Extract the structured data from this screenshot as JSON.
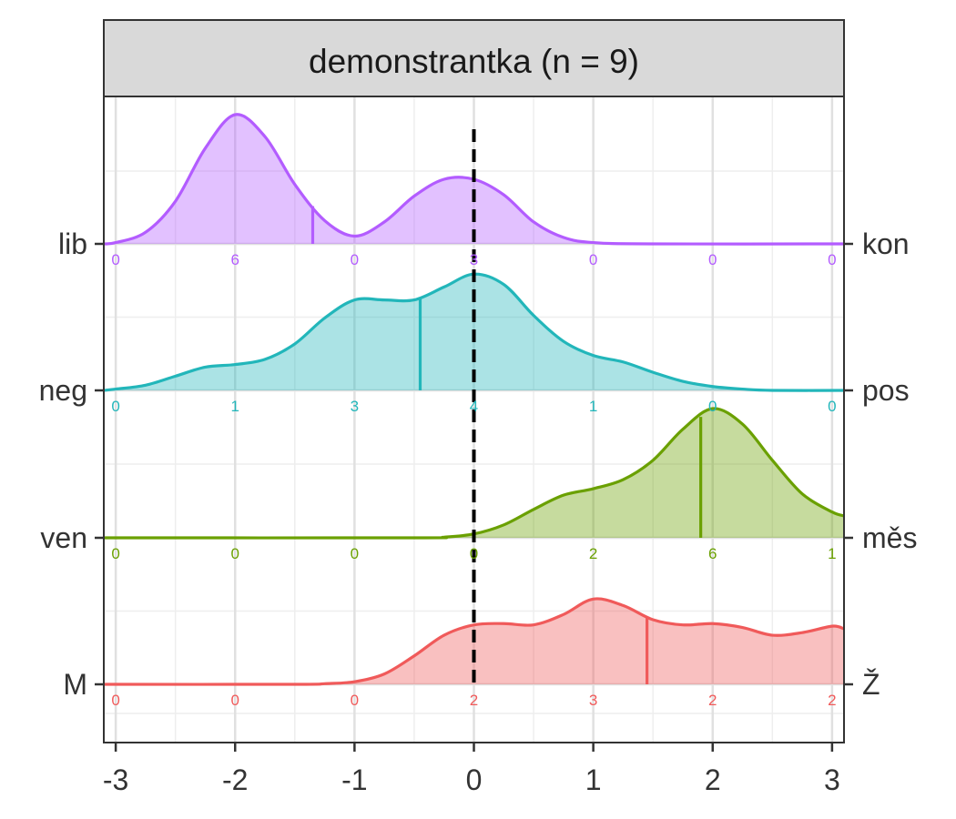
{
  "chart_data": {
    "type": "ridgeline",
    "title": "demonstrantka (n = 9)",
    "xlim": [
      -3.1,
      3.1
    ],
    "x_ticks": [
      -3,
      -2,
      -1,
      0,
      1,
      2,
      3
    ],
    "x_tick_labels": [
      "-3",
      "-2",
      "-1",
      "0",
      "1",
      "2",
      "3"
    ],
    "reference_line_x": 0,
    "grid": true,
    "series": [
      {
        "left_label": "lib",
        "right_label": "kon",
        "color": "#B35CFF",
        "marker": -1.35,
        "count_x": [
          -3,
          -2,
          -1,
          0,
          1,
          2,
          3
        ],
        "counts": [
          "0",
          "6",
          "0",
          "3",
          "0",
          "0",
          "0"
        ],
        "density": [
          [
            -3.1,
            0.0
          ],
          [
            -3.0,
            0.01
          ],
          [
            -2.75,
            0.09
          ],
          [
            -2.5,
            0.33
          ],
          [
            -2.25,
            0.74
          ],
          [
            -2.0,
            1.0
          ],
          [
            -1.75,
            0.83
          ],
          [
            -1.5,
            0.46
          ],
          [
            -1.25,
            0.18
          ],
          [
            -1.0,
            0.06
          ],
          [
            -0.75,
            0.17
          ],
          [
            -0.5,
            0.37
          ],
          [
            -0.25,
            0.5
          ],
          [
            0.0,
            0.5
          ],
          [
            0.25,
            0.38
          ],
          [
            0.5,
            0.17
          ],
          [
            0.75,
            0.05
          ],
          [
            1.0,
            0.01
          ],
          [
            1.5,
            0.0
          ],
          [
            3.1,
            0.0
          ]
        ]
      },
      {
        "left_label": "neg",
        "right_label": "pos",
        "color": "#22B6BA",
        "marker": -0.45,
        "count_x": [
          -3,
          -2,
          -1,
          0,
          1,
          2,
          3
        ],
        "counts": [
          "0",
          "1",
          "3",
          "4",
          "1",
          "0",
          "0"
        ],
        "density": [
          [
            -3.1,
            0.0
          ],
          [
            -3.0,
            0.01
          ],
          [
            -2.75,
            0.04
          ],
          [
            -2.5,
            0.11
          ],
          [
            -2.25,
            0.18
          ],
          [
            -2.0,
            0.2
          ],
          [
            -1.75,
            0.24
          ],
          [
            -1.5,
            0.36
          ],
          [
            -1.25,
            0.56
          ],
          [
            -1.0,
            0.7
          ],
          [
            -0.75,
            0.7
          ],
          [
            -0.5,
            0.7
          ],
          [
            -0.25,
            0.8
          ],
          [
            0.0,
            0.9
          ],
          [
            0.25,
            0.82
          ],
          [
            0.5,
            0.58
          ],
          [
            0.75,
            0.38
          ],
          [
            1.0,
            0.27
          ],
          [
            1.25,
            0.22
          ],
          [
            1.5,
            0.14
          ],
          [
            1.75,
            0.07
          ],
          [
            2.0,
            0.03
          ],
          [
            2.25,
            0.01
          ],
          [
            2.5,
            0.0
          ],
          [
            3.1,
            0.0
          ]
        ]
      },
      {
        "left_label": "ven",
        "right_label": "měs",
        "color": "#6AA000",
        "marker": 1.9,
        "count_x": [
          -3,
          -2,
          -1,
          0,
          1,
          2,
          3
        ],
        "counts": [
          "0",
          "0",
          "0",
          "0",
          "2",
          "6",
          "1"
        ],
        "density": [
          [
            -3.1,
            0.0
          ],
          [
            -0.5,
            0.0
          ],
          [
            -0.25,
            0.005
          ],
          [
            0.0,
            0.03
          ],
          [
            0.25,
            0.1
          ],
          [
            0.5,
            0.22
          ],
          [
            0.75,
            0.33
          ],
          [
            1.0,
            0.38
          ],
          [
            1.25,
            0.45
          ],
          [
            1.5,
            0.6
          ],
          [
            1.75,
            0.84
          ],
          [
            2.0,
            1.0
          ],
          [
            2.25,
            0.88
          ],
          [
            2.5,
            0.6
          ],
          [
            2.75,
            0.34
          ],
          [
            3.0,
            0.2
          ],
          [
            3.1,
            0.17
          ]
        ]
      },
      {
        "left_label": "M",
        "right_label": "Ž",
        "color": "#F05A5A",
        "marker": 1.45,
        "count_x": [
          -3,
          -2,
          -1,
          0,
          1,
          2,
          3
        ],
        "counts": [
          "0",
          "0",
          "0",
          "2",
          "3",
          "2",
          "2"
        ],
        "density": [
          [
            -3.1,
            0.0
          ],
          [
            -1.5,
            0.0
          ],
          [
            -1.25,
            0.005
          ],
          [
            -1.0,
            0.02
          ],
          [
            -0.75,
            0.08
          ],
          [
            -0.5,
            0.22
          ],
          [
            -0.25,
            0.38
          ],
          [
            0.0,
            0.46
          ],
          [
            0.25,
            0.47
          ],
          [
            0.5,
            0.46
          ],
          [
            0.75,
            0.54
          ],
          [
            1.0,
            0.66
          ],
          [
            1.25,
            0.61
          ],
          [
            1.5,
            0.5
          ],
          [
            1.75,
            0.46
          ],
          [
            2.0,
            0.47
          ],
          [
            2.25,
            0.44
          ],
          [
            2.5,
            0.38
          ],
          [
            2.75,
            0.4
          ],
          [
            3.0,
            0.45
          ],
          [
            3.1,
            0.43
          ]
        ]
      }
    ]
  }
}
